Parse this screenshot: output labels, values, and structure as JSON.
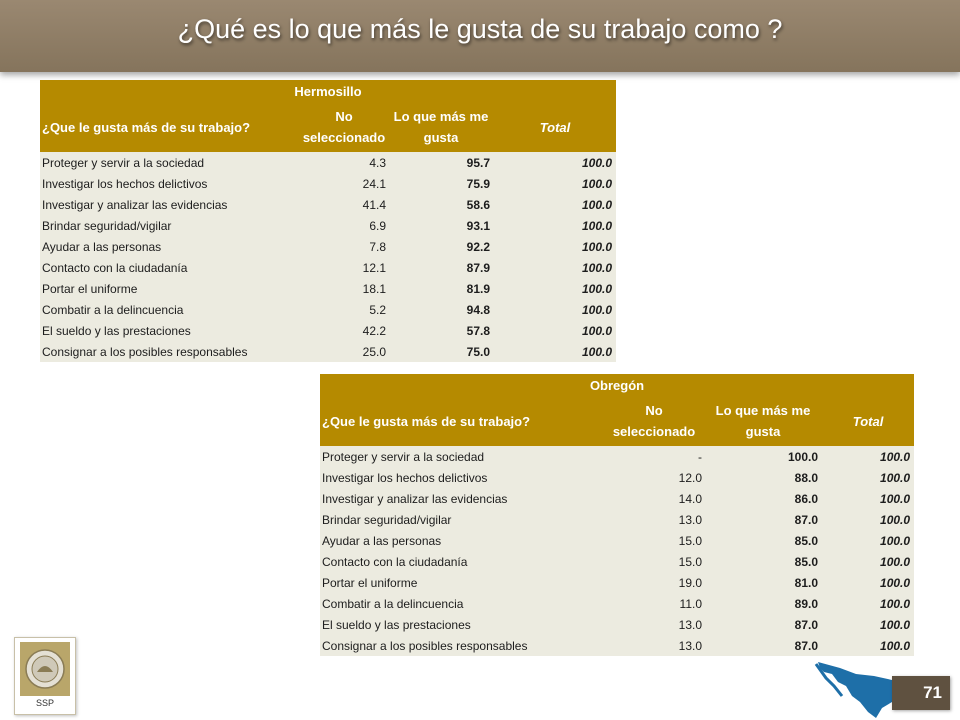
{
  "page": {
    "title": "¿Qué es lo que más le gusta de su trabajo como ?",
    "page_number": "71",
    "logo_text": "SSP"
  },
  "tables": [
    {
      "city": "Hermosillo",
      "headers": [
        "¿Que le gusta más de su trabajo?",
        "No seleccionado",
        "Lo que más me gusta",
        "Total"
      ],
      "rows": [
        {
          "label": "Proteger y servir a la sociedad",
          "no_sel": "4.3",
          "like": "95.7",
          "total": "100.0"
        },
        {
          "label": "Investigar los hechos delictivos",
          "no_sel": "24.1",
          "like": "75.9",
          "total": "100.0"
        },
        {
          "label": "Investigar y analizar las evidencias",
          "no_sel": "41.4",
          "like": "58.6",
          "total": "100.0"
        },
        {
          "label": "Brindar seguridad/vigilar",
          "no_sel": "6.9",
          "like": "93.1",
          "total": "100.0"
        },
        {
          "label": "Ayudar a las personas",
          "no_sel": "7.8",
          "like": "92.2",
          "total": "100.0"
        },
        {
          "label": "Contacto con la ciudadanía",
          "no_sel": "12.1",
          "like": "87.9",
          "total": "100.0"
        },
        {
          "label": "Portar el uniforme",
          "no_sel": "18.1",
          "like": "81.9",
          "total": "100.0"
        },
        {
          "label": "Combatir a la delincuencia",
          "no_sel": "5.2",
          "like": "94.8",
          "total": "100.0"
        },
        {
          "label": "El sueldo y las prestaciones",
          "no_sel": "42.2",
          "like": "57.8",
          "total": "100.0"
        },
        {
          "label": "Consignar a los posibles responsables",
          "no_sel": "25.0",
          "like": "75.0",
          "total": "100.0"
        }
      ]
    },
    {
      "city": "Obregón",
      "headers": [
        "¿Que le gusta más de su trabajo?",
        "No seleccionado",
        "Lo que más me gusta",
        "Total"
      ],
      "rows": [
        {
          "label": "Proteger y servir a la sociedad",
          "no_sel": "-",
          "like": "100.0",
          "total": "100.0"
        },
        {
          "label": "Investigar los hechos delictivos",
          "no_sel": "12.0",
          "like": "88.0",
          "total": "100.0"
        },
        {
          "label": "Investigar y analizar las evidencias",
          "no_sel": "14.0",
          "like": "86.0",
          "total": "100.0"
        },
        {
          "label": "Brindar seguridad/vigilar",
          "no_sel": "13.0",
          "like": "87.0",
          "total": "100.0"
        },
        {
          "label": "Ayudar a las personas",
          "no_sel": "15.0",
          "like": "85.0",
          "total": "100.0"
        },
        {
          "label": "Contacto con la ciudadanía",
          "no_sel": "15.0",
          "like": "85.0",
          "total": "100.0"
        },
        {
          "label": "Portar el uniforme",
          "no_sel": "19.0",
          "like": "81.0",
          "total": "100.0"
        },
        {
          "label": "Combatir a la delincuencia",
          "no_sel": "11.0",
          "like": "89.0",
          "total": "100.0"
        },
        {
          "label": "El sueldo y las prestaciones",
          "no_sel": "13.0",
          "like": "87.0",
          "total": "100.0"
        },
        {
          "label": "Consignar a los posibles responsables",
          "no_sel": "13.0",
          "like": "87.0",
          "total": "100.0"
        }
      ]
    }
  ],
  "colors": {
    "title_bar": "#8f7d66",
    "header_gold": "#b58a00",
    "row_bg": "#ecebe0",
    "page_box": "#5f5140",
    "map_blue": "#1e6fa8"
  },
  "icons": {
    "logo": "ssp-seal-icon",
    "map": "sonora-map-icon"
  }
}
